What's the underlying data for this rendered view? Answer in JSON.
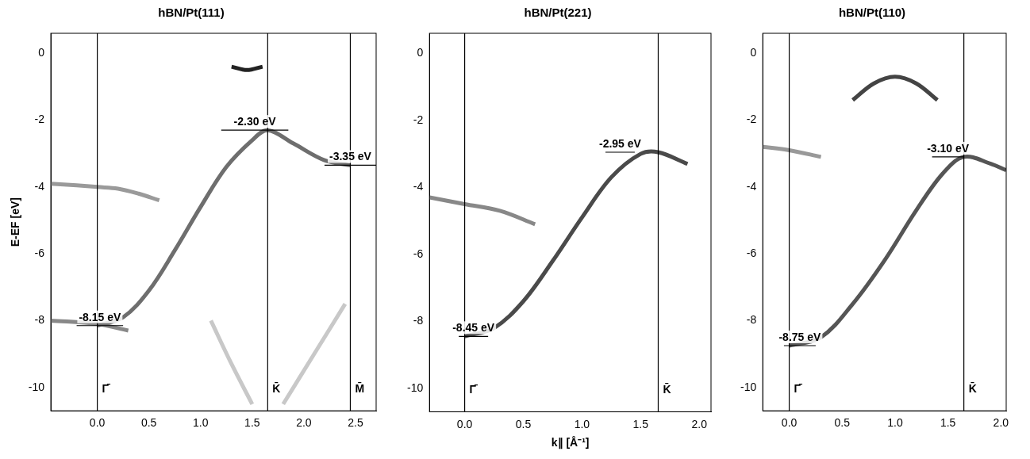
{
  "chart_data": [
    {
      "type": "line",
      "title": "hBN/Pt(111)",
      "y_label": "E-EF [eV]",
      "xlim": [
        -0.45,
        2.7
      ],
      "xticks": [
        {
          "value": 0,
          "label": "0.0"
        },
        0.5,
        {
          "value": 1,
          "label": "1.0"
        },
        1.5,
        {
          "value": 2,
          "label": "2.0"
        },
        2.5
      ],
      "ylim": [
        -10.7,
        0.6
      ],
      "yticks": [
        -10,
        -8,
        -6,
        -4,
        -2,
        0
      ],
      "grid": false,
      "symmetry_points": [
        {
          "x": 0,
          "label": "Γ̄"
        },
        {
          "x": 1.65,
          "label": "K̄"
        },
        {
          "x": 2.45,
          "label": "M̄"
        }
      ],
      "energy_marks": [
        {
          "x": [
            -0.2,
            0.25
          ],
          "y": -8.15,
          "label": "-8.15 eV"
        },
        {
          "x": [
            1.2,
            1.85
          ],
          "y": -2.3,
          "label": "-2.30 eV"
        },
        {
          "x": [
            2.2,
            2.7
          ],
          "y": -3.35,
          "label": "-3.35 eV"
        }
      ],
      "series": [
        {
          "color": "#6e6e6e",
          "x": [
            0,
            0.25,
            0.5,
            0.75,
            1.0,
            1.25,
            1.5,
            1.65,
            1.9,
            2.2,
            2.45
          ],
          "values": [
            -8.15,
            -7.9,
            -7.1,
            -5.9,
            -4.6,
            -3.4,
            -2.6,
            -2.3,
            -2.7,
            -3.2,
            -3.35
          ]
        },
        {
          "color": "#9a9a9a",
          "x": [
            -0.45,
            -0.2,
            0,
            0.2,
            0.4,
            0.6
          ],
          "values": [
            -3.9,
            -3.95,
            -4.0,
            -4.05,
            -4.2,
            -4.4
          ]
        },
        {
          "color": "#888888",
          "x": [
            -0.45,
            0,
            0.3
          ],
          "values": [
            -8.0,
            -8.1,
            -8.3
          ]
        },
        {
          "color": "#c8c8c8",
          "x": [
            1.1,
            1.3,
            1.5
          ],
          "values": [
            -8.0,
            -9.3,
            -10.5
          ]
        },
        {
          "color": "#c8c8c8",
          "x": [
            1.8,
            2.1,
            2.4
          ],
          "values": [
            -10.5,
            -9.0,
            -7.5
          ]
        },
        {
          "color": "#222222",
          "x": [
            1.3,
            1.45,
            1.6
          ],
          "values": [
            -0.4,
            -0.5,
            -0.4
          ]
        }
      ]
    },
    {
      "type": "line",
      "title": "hBN/Pt(221)",
      "x_label": "k∥ [Å⁻¹]",
      "xlim": [
        -0.3,
        2.1
      ],
      "xticks": [
        {
          "value": 0,
          "label": "0.0"
        },
        0.5,
        {
          "value": 1,
          "label": "1.0"
        },
        1.5,
        {
          "value": 2,
          "label": "2.0"
        }
      ],
      "ylim": [
        -10.7,
        0.6
      ],
      "yticks": [
        -10,
        -8,
        -6,
        -4,
        -2,
        0
      ],
      "grid": false,
      "symmetry_points": [
        {
          "x": 0,
          "label": "Γ̄"
        },
        {
          "x": 1.65,
          "label": "K̄"
        }
      ],
      "energy_marks": [
        {
          "x": [
            -0.05,
            0.2
          ],
          "y": -8.45,
          "label": "-8.45 eV"
        },
        {
          "x": [
            1.2,
            1.45
          ],
          "y": -2.95,
          "label": "-2.95 eV"
        }
      ],
      "series": [
        {
          "color": "#4a4a4a",
          "x": [
            0,
            0.25,
            0.5,
            0.75,
            1.0,
            1.25,
            1.5,
            1.65,
            1.9
          ],
          "values": [
            -8.45,
            -8.2,
            -7.4,
            -6.2,
            -4.9,
            -3.7,
            -3.0,
            -2.95,
            -3.3
          ]
        },
        {
          "color": "#888888",
          "x": [
            -0.3,
            0,
            0.3,
            0.6
          ],
          "values": [
            -4.3,
            -4.5,
            -4.7,
            -5.1
          ]
        }
      ]
    },
    {
      "type": "line",
      "title": "hBN/Pt(110)",
      "xlim": [
        -0.25,
        2.05
      ],
      "xticks": [
        {
          "value": 0,
          "label": "0.0"
        },
        0.5,
        {
          "value": 1,
          "label": "1.0"
        },
        1.5,
        {
          "value": 2,
          "label": "2.0"
        }
      ],
      "ylim": [
        -10.7,
        0.6
      ],
      "yticks": [
        -10,
        -8,
        -6,
        -4,
        -2,
        0
      ],
      "grid": false,
      "symmetry_points": [
        {
          "x": 0,
          "label": "Γ̄"
        },
        {
          "x": 1.65,
          "label": "K̄"
        }
      ],
      "energy_marks": [
        {
          "x": [
            -0.05,
            0.25
          ],
          "y": -8.75,
          "label": "-8.75 eV"
        },
        {
          "x": [
            1.35,
            1.65
          ],
          "y": -3.1,
          "label": "-3.10 eV"
        }
      ],
      "series": [
        {
          "color": "#555555",
          "x": [
            0,
            0.3,
            0.6,
            0.9,
            1.2,
            1.45,
            1.65,
            1.9,
            2.05
          ],
          "values": [
            -8.75,
            -8.5,
            -7.5,
            -6.2,
            -4.7,
            -3.6,
            -3.1,
            -3.3,
            -3.5
          ]
        },
        {
          "color": "#444444",
          "x": [
            0.6,
            0.8,
            1.0,
            1.2,
            1.4
          ],
          "values": [
            -1.4,
            -0.9,
            -0.7,
            -0.9,
            -1.4
          ]
        },
        {
          "color": "#999999",
          "x": [
            -0.25,
            0,
            0.3
          ],
          "values": [
            -2.8,
            -2.9,
            -3.1
          ]
        }
      ]
    }
  ]
}
